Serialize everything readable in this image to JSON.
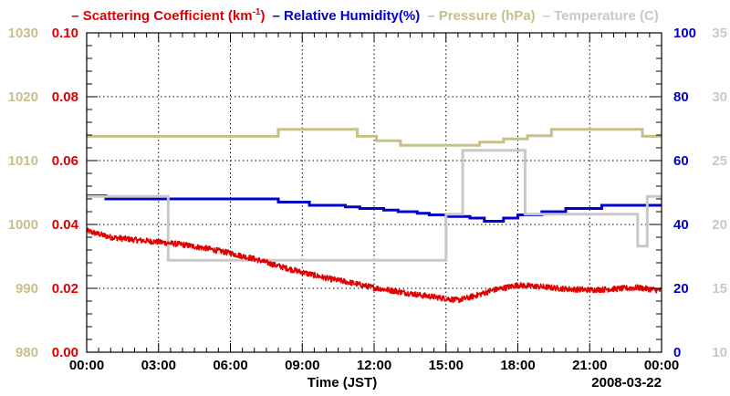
{
  "chart_data": {
    "type": "line",
    "x_label": "Time (JST)",
    "date_label": "2008-03-22",
    "x_range_hours": [
      0,
      24
    ],
    "x_ticks": [
      "00:00",
      "03:00",
      "06:00",
      "09:00",
      "12:00",
      "15:00",
      "18:00",
      "21:00",
      "00:00"
    ],
    "legend": [
      {
        "text": "Scattering Coefficient (km",
        "sup": "-1",
        "after": ")",
        "color": "#e00000"
      },
      {
        "text": "Relative Humidity(%)",
        "color": "#0000cc"
      },
      {
        "text": "Pressure (hPa)",
        "color": "#c8c08a"
      },
      {
        "text": "Temperature (C)",
        "color": "#c8c8c8"
      }
    ],
    "axes": {
      "pressure": {
        "side": "left-outer",
        "range": [
          980,
          1030
        ],
        "ticks": [
          "980",
          "990",
          "1000",
          "1010",
          "1020",
          "1030"
        ],
        "color": "#c8c08a"
      },
      "scattering": {
        "side": "left-inner",
        "range": [
          0,
          0.1
        ],
        "ticks": [
          "0.00",
          "0.02",
          "0.04",
          "0.06",
          "0.08",
          "0.10"
        ],
        "color": "#e00000"
      },
      "humidity": {
        "side": "right-inner",
        "range": [
          0,
          100
        ],
        "ticks": [
          "0",
          "20",
          "40",
          "60",
          "80",
          "100"
        ],
        "color": "#0000cc"
      },
      "temperature": {
        "side": "right-outer",
        "range": [
          10,
          35
        ],
        "ticks": [
          "10",
          "15",
          "20",
          "25",
          "30",
          "35"
        ],
        "color": "#c8c8c8"
      }
    },
    "series": [
      {
        "name": "Pressure (hPa)",
        "axis": "pressure",
        "kind": "step",
        "color": "#c8c08a",
        "x": [
          0,
          6.8,
          8.0,
          11.3,
          12.1,
          13.1,
          16.4,
          17.4,
          18.4,
          19.4,
          23.2,
          24
        ],
        "y": [
          1013.8,
          1013.8,
          1014.9,
          1013.8,
          1013.1,
          1012.4,
          1012.9,
          1013.4,
          1013.9,
          1014.9,
          1013.8,
          1013.8
        ]
      },
      {
        "name": "Relative Humidity(%)",
        "axis": "humidity",
        "kind": "step",
        "color": "#0000cc",
        "x": [
          0,
          0.8,
          8.0,
          9.3,
          10.8,
          11.4,
          12.4,
          13.0,
          13.3,
          13.8,
          14.3,
          15.0,
          16.0,
          16.6,
          17.4,
          18.0,
          19.0,
          20.0,
          21.5,
          24
        ],
        "y": [
          49,
          48,
          47,
          46,
          45.5,
          45,
          44.5,
          44,
          44,
          43.5,
          43,
          42.5,
          42,
          41,
          42,
          43,
          44,
          45,
          46,
          46
        ]
      },
      {
        "name": "Temperature (C)",
        "axis": "temperature",
        "kind": "step",
        "color": "#c8c8c8",
        "x": [
          0,
          3.4,
          9.3,
          13.3,
          15.0,
          15.7,
          18.3,
          23.0,
          23.4,
          24
        ],
        "y": [
          22.2,
          17.2,
          17.2,
          17.2,
          20.8,
          25.8,
          20.8,
          18.3,
          22.2,
          22.2
        ]
      },
      {
        "name": "Scattering Coefficient (km-1)",
        "axis": "scattering",
        "kind": "noisy",
        "color": "#e00000",
        "noise": 0.0009,
        "x": [
          0,
          0.5,
          1,
          2,
          3,
          4,
          5,
          6,
          7,
          8,
          9,
          10,
          11,
          12,
          13,
          14,
          15,
          15.5,
          16,
          17,
          18,
          19,
          20,
          21,
          22,
          23,
          24
        ],
        "y": [
          0.038,
          0.037,
          0.036,
          0.0352,
          0.0345,
          0.0337,
          0.0325,
          0.031,
          0.0292,
          0.027,
          0.025,
          0.0232,
          0.0218,
          0.0202,
          0.019,
          0.0178,
          0.0168,
          0.0163,
          0.0172,
          0.0195,
          0.021,
          0.0205,
          0.0198,
          0.0195,
          0.0198,
          0.0202,
          0.0193
        ]
      }
    ]
  }
}
